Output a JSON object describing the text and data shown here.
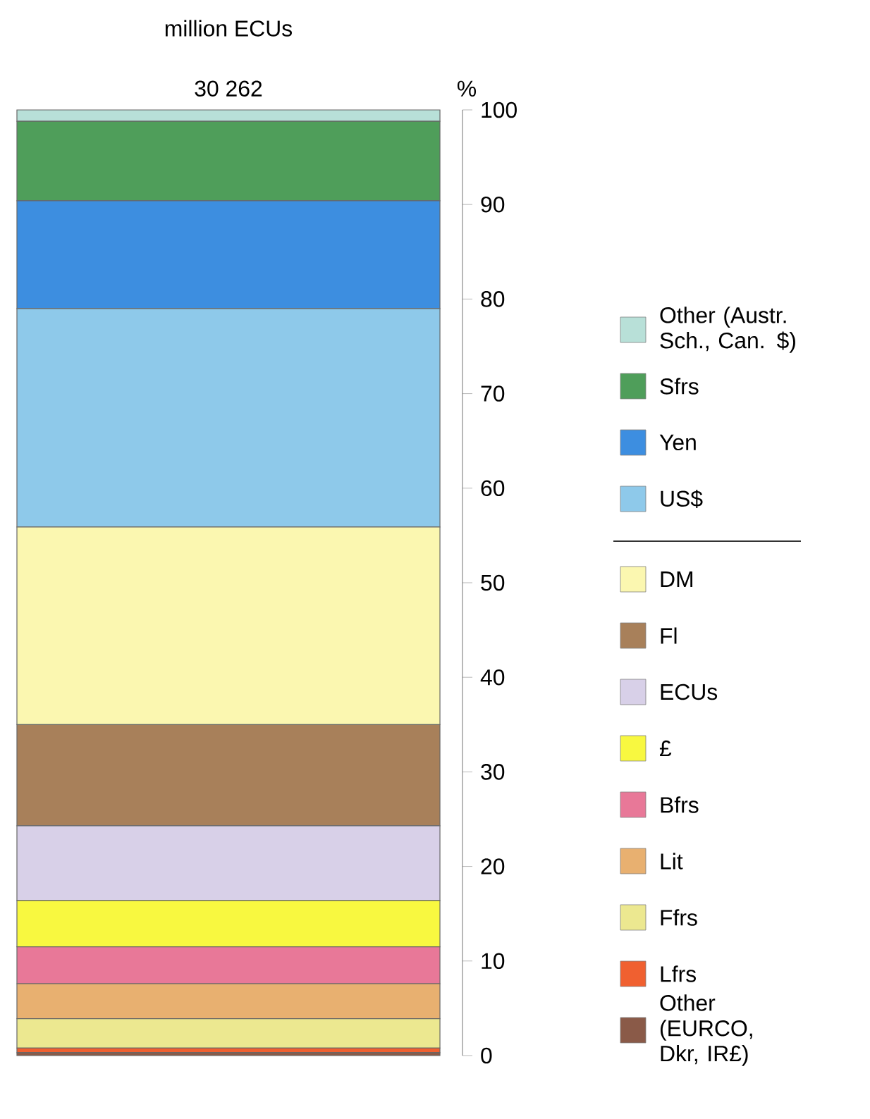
{
  "chart_data": {
    "type": "bar",
    "title": "million ECUs",
    "ylabel": "%",
    "stacked": true,
    "categories": [
      null
    ],
    "annotations": [
      {
        "text": "30 262"
      }
    ],
    "ylim": [
      0,
      100
    ],
    "yticks": [
      0,
      10,
      20,
      30,
      40,
      50,
      60,
      70,
      80,
      90,
      100
    ],
    "legend": "right",
    "series": [
      {
        "name": "Other (EURCO, Dkr, IR£)",
        "color": "#8a5a48",
        "values": [
          0.3
        ]
      },
      {
        "name": "Lfrs",
        "color": "#f06030",
        "values": [
          0.5
        ]
      },
      {
        "name": "Ffrs",
        "color": "#ece890",
        "values": [
          3.1
        ]
      },
      {
        "name": "Lit",
        "color": "#e8b070",
        "values": [
          3.7
        ]
      },
      {
        "name": "Bfrs",
        "color": "#e87898",
        "values": [
          3.9
        ]
      },
      {
        "name": "£",
        "color": "#f8f840",
        "values": [
          4.9
        ]
      },
      {
        "name": "ECUs",
        "color": "#d8d0e8",
        "values": [
          7.9
        ]
      },
      {
        "name": "Fl",
        "color": "#a8805a",
        "values": [
          10.7
        ]
      },
      {
        "name": "DM",
        "color": "#fbf7b0",
        "values": [
          20.9
        ]
      },
      {
        "name": "US$",
        "color": "#8ec9ea",
        "values": [
          23.1
        ]
      },
      {
        "name": "Yen",
        "color": "#3d8ee0",
        "values": [
          11.4
        ]
      },
      {
        "name": "Sfrs",
        "color": "#4f9e5a",
        "values": [
          8.4
        ]
      },
      {
        "name": "Other (Austr. Sch., Can. $)",
        "color": "#b8e0d8",
        "values": [
          1.2
        ]
      }
    ]
  }
}
